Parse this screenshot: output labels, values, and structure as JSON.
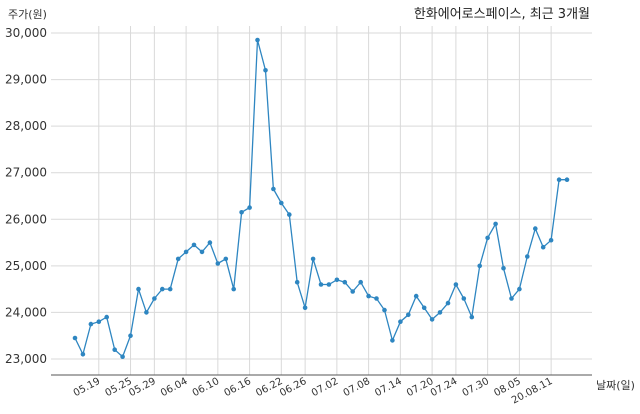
{
  "chart_data": {
    "type": "line",
    "title": "한화에어로스페이스, 최근 3개월",
    "ylabel": "주가(원)",
    "xlabel": "날짜(일)",
    "ylim": [
      23000,
      30000
    ],
    "yticks": [
      "23,000",
      "24,000",
      "25,000",
      "26,000",
      "27,000",
      "28,000",
      "29,000",
      "30,000"
    ],
    "ytick_values": [
      23000,
      24000,
      25000,
      26000,
      27000,
      28000,
      29000,
      30000
    ],
    "xtick_labels": [
      "05.19",
      "05.25",
      "05.29",
      "06.04",
      "06.10",
      "06.16",
      "06.22",
      "06.26",
      "07.02",
      "07.08",
      "07.14",
      "07.20",
      "07.24",
      "07.30",
      "08.05",
      "20.08.11"
    ],
    "xtick_index": [
      3,
      7,
      10,
      14,
      18,
      22,
      26,
      29,
      33,
      37,
      41,
      45,
      48,
      52,
      56,
      60
    ],
    "grid": true,
    "series": [
      {
        "color": "#2e86c1",
        "values": [
          23450,
          23100,
          23750,
          23800,
          23900,
          23200,
          23050,
          23500,
          24500,
          24000,
          24300,
          24500,
          24500,
          25150,
          25300,
          25450,
          25300,
          25500,
          25050,
          25150,
          24500,
          26150,
          26250,
          29850,
          29200,
          26650,
          26350,
          26100,
          24650,
          24100,
          25150,
          24600,
          24600,
          24700,
          24650,
          24450,
          24650,
          24350,
          24300,
          24050,
          23400,
          23800,
          23950,
          24350,
          24100,
          23850,
          24000,
          24200,
          24600,
          24300,
          23900,
          25000,
          25600,
          25900,
          24950,
          24300,
          24500,
          25200,
          25800,
          25400,
          25550,
          26850,
          26850
        ]
      }
    ]
  }
}
